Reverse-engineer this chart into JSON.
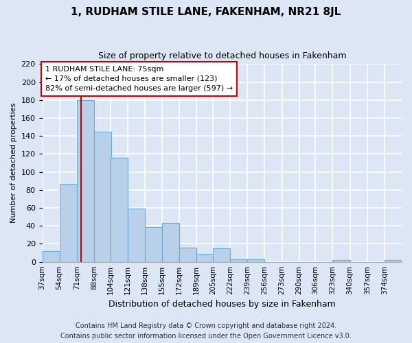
{
  "title": "1, RUDHAM STILE LANE, FAKENHAM, NR21 8JL",
  "subtitle": "Size of property relative to detached houses in Fakenham",
  "xlabel": "Distribution of detached houses by size in Fakenham",
  "ylabel": "Number of detached properties",
  "bar_values": [
    12,
    87,
    180,
    145,
    116,
    59,
    39,
    43,
    16,
    9,
    15,
    3,
    3,
    0,
    0,
    0,
    0,
    2,
    0,
    0,
    2
  ],
  "categories": [
    "37sqm",
    "54sqm",
    "71sqm",
    "88sqm",
    "104sqm",
    "121sqm",
    "138sqm",
    "155sqm",
    "172sqm",
    "189sqm",
    "205sqm",
    "222sqm",
    "239sqm",
    "256sqm",
    "273sqm",
    "290sqm",
    "306sqm",
    "323sqm",
    "340sqm",
    "357sqm",
    "374sqm"
  ],
  "bar_edges": [
    37,
    54,
    71,
    88,
    104,
    121,
    138,
    155,
    172,
    189,
    205,
    222,
    239,
    256,
    273,
    290,
    306,
    323,
    340,
    357,
    374
  ],
  "bar_color": "#b8d0ea",
  "bar_edge_color": "#6aaad4",
  "property_line_x": 75,
  "property_line_color": "#cc0000",
  "ylim": [
    0,
    220
  ],
  "yticks": [
    0,
    20,
    40,
    60,
    80,
    100,
    120,
    140,
    160,
    180,
    200,
    220
  ],
  "annotation_text": "1 RUDHAM STILE LANE: 75sqm\n← 17% of detached houses are smaller (123)\n82% of semi-detached houses are larger (597) →",
  "annotation_box_facecolor": "white",
  "annotation_box_edgecolor": "#cc0000",
  "footer_line1": "Contains HM Land Registry data © Crown copyright and database right 2024.",
  "footer_line2": "Contains public sector information licensed under the Open Government Licence v3.0.",
  "background_color": "#dce6f5",
  "plot_bg_color": "#dce6f5",
  "grid_color": "white",
  "title_fontsize": 11,
  "subtitle_fontsize": 9,
  "xlabel_fontsize": 9,
  "ylabel_fontsize": 8,
  "tick_fontsize": 8,
  "xtick_fontsize": 7.5,
  "footer_fontsize": 7,
  "annotation_fontsize": 8
}
